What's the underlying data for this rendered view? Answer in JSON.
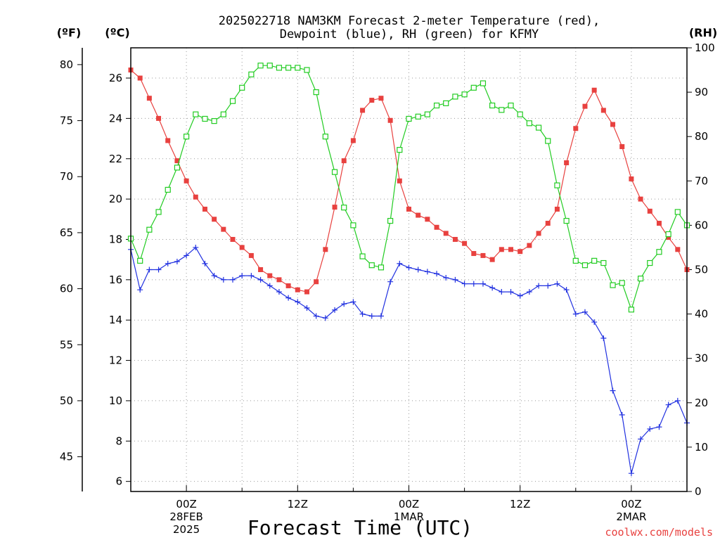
{
  "chart_data": {
    "type": "line",
    "title_line1": "2025022718 NAM3KM Forecast 2-meter Temperature (red),",
    "title_line2": "Dewpoint (blue), RH (green) for KFMY",
    "units": {
      "left_outer": "(ºF)",
      "left_inner": "(ºC)",
      "right": "(RH)"
    },
    "xlabel": "Forecast Time (UTC)",
    "credit": "coolwx.com/models",
    "hours": [
      -6,
      -5,
      -4,
      -3,
      -2,
      -1,
      0,
      1,
      2,
      3,
      4,
      5,
      6,
      7,
      8,
      9,
      10,
      11,
      12,
      13,
      14,
      15,
      16,
      17,
      18,
      19,
      20,
      21,
      22,
      23,
      24,
      25,
      26,
      27,
      28,
      29,
      30,
      31,
      32,
      33,
      34,
      35,
      36,
      37,
      38,
      39,
      40,
      41,
      42,
      43,
      44,
      45,
      46,
      47,
      48,
      49,
      50,
      51,
      52,
      53,
      54
    ],
    "x_ticks": [
      {
        "hour": 0,
        "lines": [
          "00Z",
          "28FEB",
          "2025"
        ]
      },
      {
        "hour": 12,
        "lines": [
          "12Z"
        ]
      },
      {
        "hour": 24,
        "lines": [
          "00Z",
          "1MAR"
        ]
      },
      {
        "hour": 36,
        "lines": [
          "12Z"
        ]
      },
      {
        "hour": 48,
        "lines": [
          "00Z",
          "2MAR"
        ]
      }
    ],
    "celsius_axis": {
      "min": 5.5,
      "max": 27.5,
      "ticks": [
        6,
        8,
        10,
        12,
        14,
        16,
        18,
        20,
        22,
        24,
        26
      ]
    },
    "fahrenheit_ticks": [
      45,
      50,
      55,
      60,
      65,
      70,
      75,
      80
    ],
    "rh_axis": {
      "min": 0,
      "max": 100,
      "ticks": [
        0,
        10,
        20,
        30,
        40,
        50,
        60,
        70,
        80,
        90,
        100
      ]
    },
    "grid": "dotted",
    "series": [
      {
        "name": "Temperature",
        "color": "#e8413f",
        "marker": "filled-square",
        "values": [
          26.4,
          26.0,
          25.0,
          24.0,
          22.9,
          21.9,
          20.9,
          20.1,
          19.5,
          19.0,
          18.5,
          18.0,
          17.6,
          17.2,
          16.5,
          16.2,
          16.0,
          15.7,
          15.5,
          15.4,
          15.9,
          17.5,
          19.6,
          21.9,
          22.9,
          24.4,
          24.9,
          25.0,
          23.9,
          20.9,
          19.5,
          19.2,
          19.0,
          18.6,
          18.3,
          18.0,
          17.8,
          17.3,
          17.2,
          17.0,
          17.5,
          17.5,
          17.4,
          17.7,
          18.3,
          18.8,
          19.5,
          21.8,
          23.5,
          24.6,
          25.4,
          24.4,
          23.7,
          22.6,
          21.0,
          20.0,
          19.4,
          18.8,
          18.1,
          17.5,
          16.5
        ]
      },
      {
        "name": "Dewpoint",
        "color": "#2030e0",
        "marker": "plus",
        "values": [
          17.5,
          15.5,
          16.5,
          16.5,
          16.8,
          16.9,
          17.2,
          17.6,
          16.8,
          16.2,
          16.0,
          16.0,
          16.2,
          16.2,
          16.0,
          15.7,
          15.4,
          15.1,
          14.9,
          14.6,
          14.2,
          14.1,
          14.5,
          14.8,
          14.9,
          14.3,
          14.2,
          14.2,
          15.9,
          16.8,
          16.6,
          16.5,
          16.4,
          16.3,
          16.1,
          16.0,
          15.8,
          15.8,
          15.8,
          15.6,
          15.4,
          15.4,
          15.2,
          15.4,
          15.7,
          15.7,
          15.8,
          15.5,
          14.3,
          14.4,
          13.9,
          13.1,
          10.5,
          9.3,
          6.4,
          8.1,
          8.6,
          8.7,
          9.8,
          10.0,
          8.9
        ]
      },
      {
        "name": "RH",
        "color": "#22cc22",
        "marker": "open-square",
        "values": [
          57,
          52,
          59,
          63,
          68,
          73,
          80,
          85,
          84,
          83.5,
          85,
          88,
          91,
          94,
          96,
          96,
          95.5,
          95.5,
          95.5,
          95,
          90,
          80,
          72,
          64,
          60,
          53,
          51,
          50.5,
          61,
          77,
          84,
          84.5,
          85,
          87,
          87.5,
          89,
          89.5,
          91,
          92,
          87,
          86,
          87,
          85,
          83,
          82,
          79,
          69,
          61,
          52,
          51,
          52,
          51.5,
          46.5,
          47,
          41,
          48,
          51.5,
          54,
          58,
          63,
          60
        ]
      }
    ]
  }
}
